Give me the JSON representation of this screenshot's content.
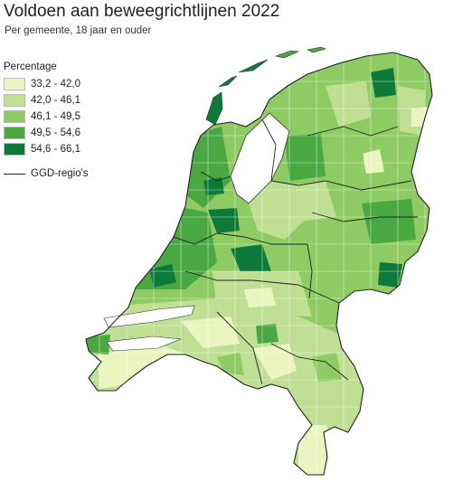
{
  "title": "Voldoen aan beweegrichtlijnen 2022",
  "subtitle": "Per gemeente, 18 jaar en ouder",
  "legend": {
    "title": "Percentage",
    "classes": [
      {
        "label": "33,2 - 42,0",
        "color": "#eaf5c0"
      },
      {
        "label": "42,0 - 46,1",
        "color": "#bfe094"
      },
      {
        "label": "46,1 - 49,5",
        "color": "#8ecb62"
      },
      {
        "label": "49,5 - 54,6",
        "color": "#4aa843"
      },
      {
        "label": "54,6 - 66,1",
        "color": "#0e7a3a"
      }
    ],
    "boundary_label": "GGD-regio's"
  }
}
